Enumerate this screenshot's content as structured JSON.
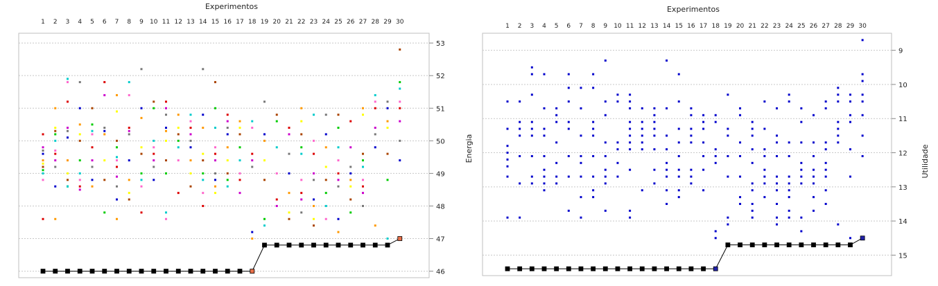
{
  "chart_data": [
    {
      "type": "scatter",
      "title": "Experimentos",
      "xlabel": "Experimentos",
      "ylabel": "Energia",
      "x_ticks": [
        1,
        2,
        3,
        4,
        5,
        6,
        7,
        8,
        9,
        10,
        11,
        12,
        13,
        14,
        15,
        16,
        17,
        18,
        19,
        20,
        21,
        22,
        23,
        24,
        25,
        26,
        27,
        28,
        29,
        30
      ],
      "y_ticks": [
        46,
        47,
        48,
        49,
        50,
        51,
        52,
        53
      ],
      "ylim": [
        45.8,
        53.3
      ],
      "y_axis_side": "right",
      "x_axis_side": "top",
      "grid": "horizontal dashed",
      "marker_colors": [
        "#0000cc",
        "#dd0000",
        "#00cc00",
        "#ff9900",
        "#cc00cc",
        "#00cccc",
        "#ffff00",
        "#777777",
        "#ff66cc",
        "#aa4400"
      ],
      "best_line": {
        "color": "#000000",
        "x": [
          1,
          2,
          3,
          4,
          5,
          6,
          7,
          8,
          9,
          10,
          11,
          12,
          13,
          14,
          15,
          16,
          17,
          18,
          19,
          20,
          21,
          22,
          23,
          24,
          25,
          26,
          27,
          28,
          29,
          30
        ],
        "y": [
          46,
          46,
          46,
          46,
          46,
          46,
          46,
          46,
          46,
          46,
          46,
          46,
          46,
          46,
          46,
          46,
          46,
          46,
          46.8,
          46.8,
          46.8,
          46.8,
          46.8,
          46.8,
          46.8,
          46.8,
          46.8,
          46.8,
          46.8,
          47.0
        ]
      },
      "points": [
        {
          "x": 1,
          "y": [
            50.2,
            49.8,
            49.7,
            49.6,
            49.4,
            49.3,
            49.2,
            49.1,
            49.0,
            48.8,
            47.6
          ]
        },
        {
          "x": 2,
          "y": [
            51.0,
            50.4,
            50.3,
            50.2,
            50.0,
            49.7,
            49.6,
            49.4,
            49.2,
            48.6,
            47.6
          ]
        },
        {
          "x": 3,
          "y": [
            51.9,
            51.8,
            51.2,
            50.4,
            50.3,
            50.1,
            49.4,
            49.0,
            48.8,
            48.6,
            48.6
          ]
        },
        {
          "x": 4,
          "y": [
            51.8,
            51.0,
            50.5,
            50.2,
            50.0,
            49.4,
            49.0,
            48.8,
            48.6,
            48.5
          ]
        },
        {
          "x": 5,
          "y": [
            51.0,
            50.5,
            50.3,
            50.2,
            49.8,
            49.4,
            49.2,
            48.8,
            48.6
          ]
        },
        {
          "x": 6,
          "y": [
            51.8,
            51.4,
            50.4,
            50.3,
            50.2,
            49.4,
            48.8,
            47.8
          ]
        },
        {
          "x": 7,
          "y": [
            51.4,
            50.9,
            50.0,
            49.8,
            49.5,
            49.4,
            49.2,
            48.9,
            48.6,
            48.2,
            47.6
          ]
        },
        {
          "x": 8,
          "y": [
            51.8,
            51.4,
            50.4,
            50.3,
            50.2,
            49.4,
            48.8,
            48.4,
            48.2
          ]
        },
        {
          "x": 9,
          "y": [
            52.2,
            51.0,
            50.7,
            49.8,
            49.6,
            49.0,
            48.8,
            48.6,
            47.8
          ]
        },
        {
          "x": 10,
          "y": [
            51.2,
            51.0,
            50.0,
            49.8,
            49.6,
            49.4,
            49.2,
            48.8
          ]
        },
        {
          "x": 11,
          "y": [
            51.2,
            51.0,
            50.8,
            50.4,
            50.3,
            50.0,
            49.4,
            49.0,
            47.8,
            47.6
          ]
        },
        {
          "x": 12,
          "y": [
            50.8,
            50.4,
            50.2,
            50.0,
            49.8,
            49.4,
            48.4
          ]
        },
        {
          "x": 13,
          "y": [
            50.8,
            50.6,
            50.4,
            50.2,
            50.0,
            49.8,
            49.4,
            49.0,
            48.6
          ]
        },
        {
          "x": 14,
          "y": [
            52.2,
            50.8,
            50.4,
            49.6,
            49.4,
            49.0,
            48.8,
            48.4,
            48.0
          ]
        },
        {
          "x": 15,
          "y": [
            51.8,
            51.0,
            50.4,
            49.8,
            49.6,
            49.4,
            49.0,
            48.8,
            48.6,
            48.4
          ]
        },
        {
          "x": 16,
          "y": [
            50.8,
            50.6,
            50.4,
            50.2,
            49.8,
            49.4,
            49.0,
            48.8,
            48.6
          ]
        },
        {
          "x": 17,
          "y": [
            50.6,
            50.4,
            50.2,
            49.8,
            49.4,
            49.0,
            48.8,
            48.4
          ]
        },
        {
          "x": 18,
          "y": [
            50.6,
            50.4,
            49.6,
            49.4,
            49.2,
            47.2,
            47.0
          ]
        },
        {
          "x": 19,
          "y": [
            51.2,
            50.2,
            50.0,
            49.4,
            48.8,
            47.6,
            47.4
          ]
        },
        {
          "x": 20,
          "y": [
            50.8,
            50.6,
            49.8,
            49.0,
            48.2,
            48.0
          ]
        },
        {
          "x": 21,
          "y": [
            50.4,
            50.2,
            49.6,
            49.0,
            48.4,
            47.8,
            47.6
          ]
        },
        {
          "x": 22,
          "y": [
            51.0,
            50.6,
            50.2,
            49.8,
            49.6,
            48.8,
            48.4,
            48.2,
            47.8
          ]
        },
        {
          "x": 23,
          "y": [
            50.8,
            50.0,
            49.6,
            49.0,
            48.8,
            48.2,
            48.0,
            47.6,
            47.4
          ]
        },
        {
          "x": 24,
          "y": [
            50.8,
            50.2,
            49.8,
            49.2,
            48.8,
            48.4,
            48.0,
            47.6
          ]
        },
        {
          "x": 25,
          "y": [
            50.8,
            50.4,
            49.8,
            49.4,
            49.0,
            48.8,
            48.6,
            47.6,
            47.2
          ]
        },
        {
          "x": 26,
          "y": [
            50.6,
            49.8,
            49.2,
            49.0,
            48.8,
            48.6,
            48.2,
            47.8
          ]
        },
        {
          "x": 27,
          "y": [
            51.0,
            50.8,
            49.6,
            49.4,
            49.2,
            48.8,
            48.6,
            48.4,
            48.0
          ]
        },
        {
          "x": 28,
          "y": [
            51.4,
            51.2,
            51.0,
            50.4,
            50.2,
            49.8,
            47.4
          ]
        },
        {
          "x": 29,
          "y": [
            51.2,
            51.0,
            50.6,
            50.4,
            49.6,
            48.8,
            47.0
          ]
        },
        {
          "x": 30,
          "y": [
            52.8,
            51.8,
            51.6,
            51.2,
            51.0,
            50.6,
            50.0,
            49.4
          ]
        }
      ]
    },
    {
      "type": "scatter",
      "title": "Experimentos",
      "xlabel": "Experimentos",
      "ylabel": "Utilidade",
      "x_ticks": [
        1,
        2,
        3,
        4,
        5,
        6,
        7,
        8,
        9,
        10,
        11,
        12,
        13,
        14,
        15,
        16,
        17,
        18,
        19,
        20,
        21,
        22,
        23,
        24,
        25,
        26,
        27,
        28,
        29,
        30
      ],
      "y_ticks": [
        9,
        10,
        11,
        12,
        13,
        14,
        15
      ],
      "ylim": [
        8.5,
        15.6
      ],
      "y_axis_side": "right",
      "y_reversed": true,
      "x_axis_side": "top",
      "grid": "horizontal dashed",
      "marker_colors": [
        "#0000cc"
      ],
      "best_line": {
        "color": "#000000",
        "x": [
          1,
          2,
          3,
          4,
          5,
          6,
          7,
          8,
          9,
          10,
          11,
          12,
          13,
          14,
          15,
          16,
          17,
          18,
          19,
          20,
          21,
          22,
          23,
          24,
          25,
          26,
          27,
          28,
          29,
          30
        ],
        "y": [
          15.4,
          15.4,
          15.4,
          15.4,
          15.4,
          15.4,
          15.4,
          15.4,
          15.4,
          15.4,
          15.4,
          15.4,
          15.4,
          15.4,
          15.4,
          15.4,
          15.4,
          15.4,
          14.7,
          14.7,
          14.7,
          14.7,
          14.7,
          14.7,
          14.7,
          14.7,
          14.7,
          14.7,
          14.7,
          14.5
        ]
      },
      "points": [
        {
          "x": 1,
          "y": [
            10.5,
            11.3,
            11.8,
            12.0,
            12.2,
            12.4,
            12.7,
            13.9
          ]
        },
        {
          "x": 2,
          "y": [
            10.5,
            11.1,
            11.3,
            11.5,
            12.1,
            12.9,
            13.9
          ]
        },
        {
          "x": 3,
          "y": [
            9.5,
            9.7,
            10.3,
            11.1,
            11.3,
            11.5,
            12.1,
            12.7,
            12.9
          ]
        },
        {
          "x": 4,
          "y": [
            9.7,
            10.7,
            11.3,
            11.5,
            12.1,
            12.5,
            12.7,
            12.9,
            13.1
          ]
        },
        {
          "x": 5,
          "y": [
            10.7,
            10.9,
            11.1,
            11.7,
            12.3,
            12.7,
            12.9
          ]
        },
        {
          "x": 6,
          "y": [
            9.7,
            10.1,
            10.5,
            11.1,
            11.3,
            12.1,
            12.7,
            13.7
          ]
        },
        {
          "x": 7,
          "y": [
            10.1,
            10.7,
            11.5,
            12.1,
            12.3,
            12.7,
            13.3,
            13.9
          ]
        },
        {
          "x": 8,
          "y": [
            9.7,
            10.1,
            11.1,
            11.3,
            11.5,
            12.1,
            12.7,
            13.1,
            13.3
          ]
        },
        {
          "x": 9,
          "y": [
            9.3,
            10.5,
            10.9,
            11.7,
            12.1,
            12.5,
            12.7,
            12.9,
            13.7
          ]
        },
        {
          "x": 10,
          "y": [
            10.3,
            10.5,
            11.7,
            11.9,
            12.3,
            12.7
          ]
        },
        {
          "x": 11,
          "y": [
            10.3,
            10.5,
            10.7,
            11.1,
            11.3,
            11.5,
            11.7,
            11.9,
            12.5,
            13.7,
            13.9
          ]
        },
        {
          "x": 12,
          "y": [
            10.7,
            11.1,
            11.3,
            11.5,
            11.7,
            11.9,
            13.1
          ]
        },
        {
          "x": 13,
          "y": [
            10.7,
            10.9,
            11.1,
            11.3,
            11.5,
            11.9,
            12.5,
            12.9
          ]
        },
        {
          "x": 14,
          "y": [
            9.3,
            10.7,
            11.5,
            11.9,
            12.3,
            12.5,
            12.7,
            13.1,
            13.5
          ]
        },
        {
          "x": 15,
          "y": [
            9.7,
            10.5,
            11.3,
            11.7,
            12.1,
            12.5,
            12.7,
            13.1,
            13.3
          ]
        },
        {
          "x": 16,
          "y": [
            10.7,
            10.9,
            11.3,
            11.5,
            11.7,
            12.5,
            12.7,
            12.9
          ]
        },
        {
          "x": 17,
          "y": [
            10.9,
            11.1,
            11.3,
            11.7,
            12.1,
            12.5,
            13.1
          ]
        },
        {
          "x": 18,
          "y": [
            10.9,
            11.1,
            11.9,
            12.1,
            12.3,
            14.3,
            14.5
          ]
        },
        {
          "x": 19,
          "y": [
            10.3,
            11.3,
            11.5,
            12.1,
            12.7,
            13.9,
            14.1
          ]
        },
        {
          "x": 20,
          "y": [
            10.7,
            10.9,
            11.7,
            12.1,
            12.7,
            13.3,
            13.5
          ]
        },
        {
          "x": 21,
          "y": [
            11.1,
            11.3,
            11.5,
            11.9,
            12.3,
            12.9,
            13.1,
            13.5,
            13.7,
            13.9
          ]
        },
        {
          "x": 22,
          "y": [
            10.5,
            11.3,
            11.9,
            12.1,
            12.5,
            12.7,
            12.9,
            13.3
          ]
        },
        {
          "x": 23,
          "y": [
            10.7,
            11.5,
            11.7,
            12.1,
            12.7,
            12.9,
            13.1,
            13.5,
            13.9,
            14.1
          ]
        },
        {
          "x": 24,
          "y": [
            10.3,
            10.5,
            11.7,
            12.1,
            12.7,
            12.9,
            13.1,
            13.3,
            13.7,
            13.9
          ]
        },
        {
          "x": 25,
          "y": [
            10.7,
            11.1,
            11.7,
            12.3,
            12.5,
            12.7,
            12.9,
            13.9,
            14.3
          ]
        },
        {
          "x": 26,
          "y": [
            10.9,
            11.7,
            12.1,
            12.5,
            12.7,
            12.9,
            13.3,
            13.7
          ]
        },
        {
          "x": 27,
          "y": [
            10.5,
            10.7,
            11.7,
            11.9,
            12.3,
            12.5,
            12.7,
            13.1,
            13.5
          ]
        },
        {
          "x": 28,
          "y": [
            10.1,
            10.3,
            10.5,
            11.1,
            11.3,
            11.5,
            11.7,
            14.1
          ]
        },
        {
          "x": 29,
          "y": [
            10.3,
            10.5,
            10.9,
            11.1,
            11.9,
            12.7,
            14.5
          ]
        },
        {
          "x": 30,
          "y": [
            8.7,
            9.7,
            9.9,
            10.3,
            10.5,
            10.9,
            11.5,
            12.1
          ]
        }
      ]
    }
  ]
}
